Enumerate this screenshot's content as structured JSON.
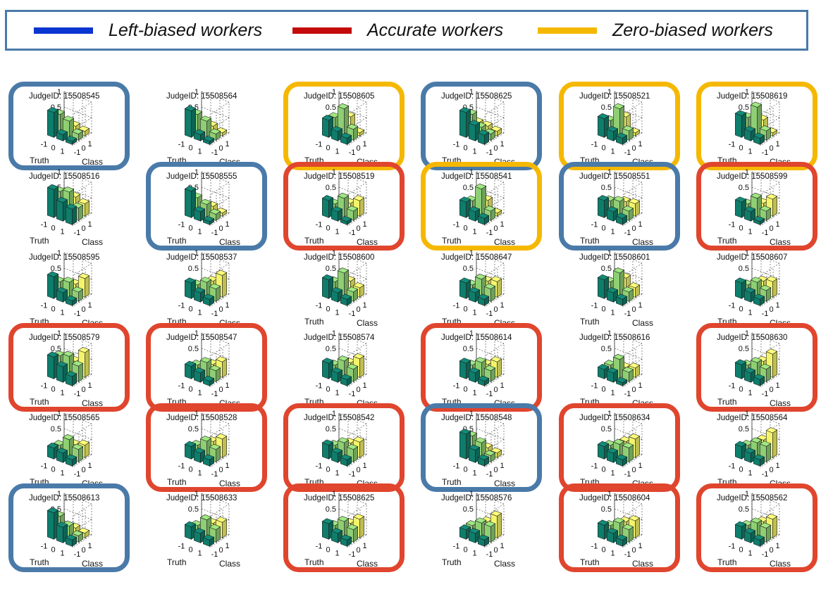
{
  "legend": {
    "items": [
      {
        "label": "Left-biased workers",
        "color": "#0b35d0"
      },
      {
        "label": "Accurate workers",
        "color": "#c40a0a"
      },
      {
        "label": "Zero-biased workers",
        "color": "#f5b800"
      }
    ]
  },
  "frame_colors": {
    "left": "#4a7aa8",
    "accurate": "#e0452e",
    "zero": "#f5b800"
  },
  "bar_colors": [
    "#0f7d6b",
    "#8fcf74",
    "#f4f46c"
  ],
  "chart_data": {
    "type": "3d-bar",
    "xlabel": "Truth",
    "ylabel": "Class",
    "zticks": [
      "1",
      "0.5",
      "0"
    ],
    "xticks": [
      "-1",
      "0",
      "1"
    ],
    "yticks": [
      "-1",
      "0",
      "1"
    ],
    "zlim": [
      0,
      1
    ],
    "panels": [
      {
        "id": "JudgeID: 15508545",
        "group": "left",
        "bars": [
          [
            0.8,
            0.6,
            0.1
          ],
          [
            0.2,
            0.5,
            0.2
          ],
          [
            0.1,
            0.2,
            0.15
          ]
        ]
      },
      {
        "id": "JudgeID: 15508564",
        "group": "",
        "bars": [
          [
            0.85,
            0.6,
            0.1
          ],
          [
            0.2,
            0.5,
            0.2
          ],
          [
            0.1,
            0.2,
            0.1
          ]
        ]
      },
      {
        "id": "JudgeID: 15508605",
        "group": "zero",
        "bars": [
          [
            0.55,
            0.5,
            0.1
          ],
          [
            0.3,
            0.9,
            0.5
          ],
          [
            0.2,
            0.35,
            0.1
          ]
        ]
      },
      {
        "id": "JudgeID: 15508625",
        "group": "left",
        "bars": [
          [
            0.8,
            0.6,
            0.2
          ],
          [
            0.5,
            0.3,
            0.2
          ],
          [
            0.3,
            0.2,
            0.15
          ]
        ]
      },
      {
        "id": "JudgeID: 15508521",
        "group": "zero",
        "bars": [
          [
            0.6,
            0.4,
            0.1
          ],
          [
            0.3,
            0.9,
            0.5
          ],
          [
            0.2,
            0.3,
            0.1
          ]
        ]
      },
      {
        "id": "JudgeID: 15508619",
        "group": "zero",
        "bars": [
          [
            0.7,
            0.5,
            0.1
          ],
          [
            0.3,
            0.95,
            0.4
          ],
          [
            0.2,
            0.3,
            0.1
          ]
        ]
      },
      {
        "id": "JudgeID: 15508516",
        "group": "",
        "bars": [
          [
            0.9,
            0.7,
            0.2
          ],
          [
            0.6,
            0.8,
            0.5
          ],
          [
            0.5,
            0.4,
            0.4
          ]
        ]
      },
      {
        "id": "JudgeID: 15508555",
        "group": "left",
        "bars": [
          [
            0.85,
            0.5,
            0.1
          ],
          [
            0.3,
            0.4,
            0.2
          ],
          [
            0.1,
            0.2,
            0.1
          ]
        ]
      },
      {
        "id": "JudgeID: 15508519",
        "group": "accurate",
        "bars": [
          [
            0.55,
            0.3,
            0.1
          ],
          [
            0.3,
            0.6,
            0.3
          ],
          [
            0.1,
            0.3,
            0.5
          ]
        ]
      },
      {
        "id": "JudgeID: 15508541",
        "group": "zero",
        "bars": [
          [
            0.5,
            0.4,
            0.1
          ],
          [
            0.3,
            0.9,
            0.4
          ],
          [
            0.2,
            0.3,
            0.1
          ]
        ]
      },
      {
        "id": "JudgeID: 15508551",
        "group": "left",
        "bars": [
          [
            0.55,
            0.4,
            0.2
          ],
          [
            0.3,
            0.5,
            0.35
          ],
          [
            0.2,
            0.3,
            0.4
          ]
        ]
      },
      {
        "id": "JudgeID: 15508599",
        "group": "accurate",
        "bars": [
          [
            0.5,
            0.3,
            0.1
          ],
          [
            0.3,
            0.6,
            0.3
          ],
          [
            0.1,
            0.3,
            0.55
          ]
        ]
      },
      {
        "id": "JudgeID: 15508595",
        "group": "",
        "bars": [
          [
            0.7,
            0.4,
            0.15
          ],
          [
            0.3,
            0.5,
            0.3
          ],
          [
            0.15,
            0.3,
            0.6
          ]
        ]
      },
      {
        "id": "JudgeID: 15508537",
        "group": "",
        "bars": [
          [
            0.5,
            0.3,
            0.1
          ],
          [
            0.3,
            0.5,
            0.4
          ],
          [
            0.2,
            0.4,
            0.7
          ]
        ]
      },
      {
        "id": "JudgeID: 15508600",
        "group": "",
        "bars": [
          [
            0.6,
            0.4,
            0.15
          ],
          [
            0.3,
            0.8,
            0.4
          ],
          [
            0.2,
            0.3,
            0.3
          ]
        ]
      },
      {
        "id": "JudgeID: 15508647",
        "group": "",
        "bars": [
          [
            0.5,
            0.3,
            0.1
          ],
          [
            0.3,
            0.6,
            0.4
          ],
          [
            0.2,
            0.4,
            0.5
          ]
        ]
      },
      {
        "id": "JudgeID: 15508601",
        "group": "",
        "bars": [
          [
            0.6,
            0.4,
            0.15
          ],
          [
            0.3,
            0.8,
            0.5
          ],
          [
            0.2,
            0.3,
            0.3
          ]
        ]
      },
      {
        "id": "JudgeID: 15508607",
        "group": "",
        "bars": [
          [
            0.5,
            0.3,
            0.1
          ],
          [
            0.3,
            0.5,
            0.4
          ],
          [
            0.2,
            0.35,
            0.5
          ]
        ]
      },
      {
        "id": "JudgeID: 15508579",
        "group": "accurate",
        "bars": [
          [
            0.7,
            0.6,
            0.3
          ],
          [
            0.5,
            0.7,
            0.4
          ],
          [
            0.3,
            0.5,
            0.8
          ]
        ]
      },
      {
        "id": "JudgeID: 15508547",
        "group": "accurate",
        "bars": [
          [
            0.4,
            0.3,
            0.1
          ],
          [
            0.3,
            0.5,
            0.3
          ],
          [
            0.15,
            0.35,
            0.5
          ]
        ]
      },
      {
        "id": "JudgeID: 15508574",
        "group": "",
        "bars": [
          [
            0.5,
            0.3,
            0.1
          ],
          [
            0.3,
            0.55,
            0.35
          ],
          [
            0.2,
            0.4,
            0.6
          ]
        ]
      },
      {
        "id": "JudgeID: 15508614",
        "group": "accurate",
        "bars": [
          [
            0.5,
            0.3,
            0.1
          ],
          [
            0.3,
            0.5,
            0.3
          ],
          [
            0.15,
            0.35,
            0.5
          ]
        ]
      },
      {
        "id": "JudgeID: 15508616",
        "group": "",
        "bars": [
          [
            0.3,
            0.3,
            0.1
          ],
          [
            0.3,
            0.6,
            0.2
          ],
          [
            0.1,
            0.3,
            0.3
          ]
        ]
      },
      {
        "id": "JudgeID: 15508630",
        "group": "accurate",
        "bars": [
          [
            0.45,
            0.3,
            0.1
          ],
          [
            0.3,
            0.5,
            0.4
          ],
          [
            0.2,
            0.4,
            0.75
          ]
        ]
      },
      {
        "id": "JudgeID: 15508565",
        "group": "",
        "bars": [
          [
            0.35,
            0.3,
            0.1
          ],
          [
            0.3,
            0.6,
            0.3
          ],
          [
            0.2,
            0.4,
            0.4
          ]
        ]
      },
      {
        "id": "JudgeID: 15508528",
        "group": "accurate",
        "bars": [
          [
            0.4,
            0.3,
            0.1
          ],
          [
            0.3,
            0.55,
            0.4
          ],
          [
            0.2,
            0.4,
            0.6
          ]
        ]
      },
      {
        "id": "JudgeID: 15508542",
        "group": "accurate",
        "bars": [
          [
            0.45,
            0.3,
            0.1
          ],
          [
            0.3,
            0.5,
            0.35
          ],
          [
            0.2,
            0.4,
            0.5
          ]
        ]
      },
      {
        "id": "JudgeID: 15508548",
        "group": "left",
        "bars": [
          [
            0.8,
            0.6,
            0.15
          ],
          [
            0.4,
            0.5,
            0.2
          ],
          [
            0.2,
            0.2,
            0.15
          ]
        ]
      },
      {
        "id": "JudgeID: 15508634",
        "group": "accurate",
        "bars": [
          [
            0.4,
            0.3,
            0.1
          ],
          [
            0.3,
            0.45,
            0.4
          ],
          [
            0.2,
            0.45,
            0.6
          ]
        ]
      },
      {
        "id": "JudgeID: 15508564",
        "group": "",
        "bars": [
          [
            0.4,
            0.3,
            0.1
          ],
          [
            0.3,
            0.5,
            0.45
          ],
          [
            0.2,
            0.5,
            0.8
          ]
        ]
      },
      {
        "id": "JudgeID: 15508613",
        "group": "left",
        "bars": [
          [
            0.85,
            0.6,
            0.15
          ],
          [
            0.5,
            0.4,
            0.2
          ],
          [
            0.2,
            0.2,
            0.15
          ]
        ]
      },
      {
        "id": "JudgeID: 15508633",
        "group": "",
        "bars": [
          [
            0.4,
            0.3,
            0.1
          ],
          [
            0.3,
            0.6,
            0.35
          ],
          [
            0.2,
            0.4,
            0.5
          ]
        ]
      },
      {
        "id": "JudgeID: 15508625",
        "group": "accurate",
        "bars": [
          [
            0.5,
            0.3,
            0.1
          ],
          [
            0.3,
            0.55,
            0.35
          ],
          [
            0.2,
            0.4,
            0.6
          ]
        ]
      },
      {
        "id": "JudgeID: 15508576",
        "group": "",
        "bars": [
          [
            0.3,
            0.3,
            0.1
          ],
          [
            0.3,
            0.5,
            0.4
          ],
          [
            0.2,
            0.5,
            0.7
          ]
        ]
      },
      {
        "id": "JudgeID: 15508604",
        "group": "accurate",
        "bars": [
          [
            0.45,
            0.3,
            0.1
          ],
          [
            0.3,
            0.5,
            0.4
          ],
          [
            0.2,
            0.4,
            0.55
          ]
        ]
      },
      {
        "id": "JudgeID: 15508562",
        "group": "accurate",
        "bars": [
          [
            0.4,
            0.3,
            0.1
          ],
          [
            0.3,
            0.5,
            0.4
          ],
          [
            0.2,
            0.45,
            0.6
          ]
        ]
      }
    ]
  }
}
